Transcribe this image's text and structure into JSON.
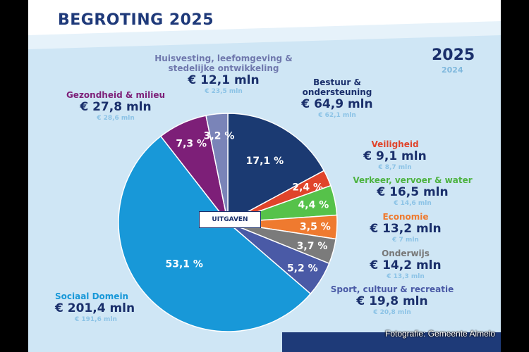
{
  "header": {
    "title": "BEGROTING 2025"
  },
  "legend": {
    "current_year": "2025",
    "previous_year": "2024"
  },
  "center_label": "UITGAVEN",
  "credit": "Fotografie: Gemeente Almelo",
  "colors": {
    "navy": "#1a2f6b",
    "light_blue_bg": "#cfe6f5",
    "prev_value": "#8cc3e6"
  },
  "chart_data": {
    "type": "pie",
    "title": "BEGROTING 2025",
    "center_label": "UITGAVEN",
    "unit": "mln",
    "slices": [
      {
        "name": "Bestuur & ondersteuning",
        "percent": 17.1,
        "percent_label": "17,1 %",
        "value_2025": 64.9,
        "value_2025_label": "€ 64,9 mln",
        "value_2024": 62.1,
        "value_2024_label": "€ 62,1 mln",
        "color": "#1b3a72"
      },
      {
        "name": "Veiligheid",
        "percent": 2.4,
        "percent_label": "2,4 %",
        "value_2025": 9.1,
        "value_2025_label": "€ 9,1 mln",
        "value_2024": 8.7,
        "value_2024_label": "€ 8,7 mln",
        "color": "#e0442b"
      },
      {
        "name": "Verkeer, vervoer & water",
        "percent": 4.4,
        "percent_label": "4,4 %",
        "value_2025": 16.5,
        "value_2025_label": "€ 16,5 mln",
        "value_2024": 14.6,
        "value_2024_label": "€ 14,6 mln",
        "color": "#56c24a"
      },
      {
        "name": "Economie",
        "percent": 3.5,
        "percent_label": "3,5 %",
        "value_2025": 13.2,
        "value_2025_label": "€ 13,2 mln",
        "value_2024": 7,
        "value_2024_label": "€ 7 mln",
        "color": "#ef7a2f"
      },
      {
        "name": "Onderwijs",
        "percent": 3.7,
        "percent_label": "3,7 %",
        "value_2025": 14.2,
        "value_2025_label": "€ 14,2 mln",
        "value_2024": 13.3,
        "value_2024_label": "€ 13,3 mln",
        "color": "#7b7b7b"
      },
      {
        "name": "Sport, cultuur & recreatie",
        "percent": 5.2,
        "percent_label": "5,2 %",
        "value_2025": 19.8,
        "value_2025_label": "€ 19,8 mln",
        "value_2024": 20.8,
        "value_2024_label": "€ 20,8 mln",
        "color": "#4a5aa6"
      },
      {
        "name": "Sociaal Domein",
        "percent": 53.1,
        "percent_label": "53,1 %",
        "value_2025": 201.4,
        "value_2025_label": "€ 201,4 mln",
        "value_2024": 191.6,
        "value_2024_label": "€ 191,6 mln",
        "color": "#1898d8"
      },
      {
        "name": "Gezondheid & milieu",
        "percent": 7.3,
        "percent_label": "7,3 %",
        "value_2025": 27.8,
        "value_2025_label": "€ 27,8 mln",
        "value_2024": 28.6,
        "value_2024_label": "€ 28,6 mln",
        "color": "#7d1f78"
      },
      {
        "name": "Huisvesting, leefomgeving & stedelijke ontwikkeling",
        "percent": 3.2,
        "percent_label": "3,2 %",
        "value_2025": 12.1,
        "value_2025_label": "€ 12,1 mln",
        "value_2024": 23.5,
        "value_2024_label": "€ 23,5 mln",
        "color": "#7a84b8"
      }
    ]
  }
}
